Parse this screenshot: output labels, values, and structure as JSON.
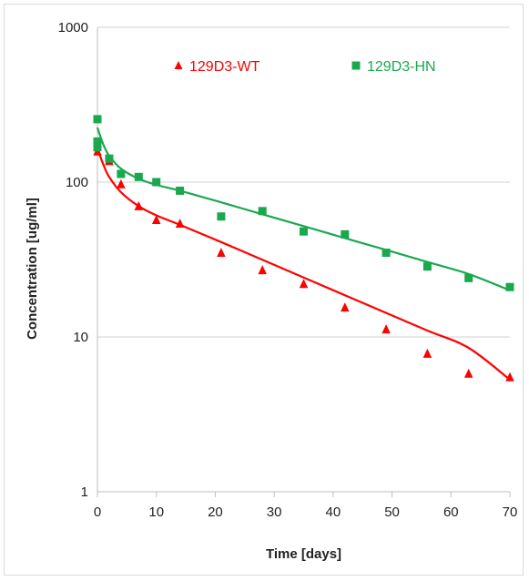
{
  "chart_data": {
    "type": "scatter",
    "title": "",
    "xlabel": "Time [days]",
    "ylabel": "Concentration [ug/ml]",
    "xlim": [
      0,
      70
    ],
    "ylim": [
      1,
      1000
    ],
    "yscale": "log",
    "grid": "horizontal",
    "legend_position": "top",
    "x_ticks": [
      "0",
      "10",
      "20",
      "30",
      "40",
      "50",
      "60",
      "70"
    ],
    "y_ticks": [
      "1",
      "10",
      "100",
      "1000"
    ],
    "series": [
      {
        "name": "129D3-WT",
        "color": "#ff0000",
        "marker": "triangle",
        "points": [
          {
            "x": 0,
            "y": 158
          },
          {
            "x": 2,
            "y": 137
          },
          {
            "x": 4,
            "y": 97
          },
          {
            "x": 7,
            "y": 70
          },
          {
            "x": 10,
            "y": 57
          },
          {
            "x": 14,
            "y": 54
          },
          {
            "x": 21,
            "y": 35
          },
          {
            "x": 28,
            "y": 27
          },
          {
            "x": 35,
            "y": 22
          },
          {
            "x": 42,
            "y": 15.5
          },
          {
            "x": 49,
            "y": 11.2
          },
          {
            "x": 56,
            "y": 7.8
          },
          {
            "x": 63,
            "y": 5.8
          },
          {
            "x": 70,
            "y": 5.5
          }
        ],
        "fit": [
          {
            "x": 0,
            "y": 165
          },
          {
            "x": 1,
            "y": 130
          },
          {
            "x": 2,
            "y": 108
          },
          {
            "x": 4,
            "y": 86
          },
          {
            "x": 7,
            "y": 70
          },
          {
            "x": 10,
            "y": 61
          },
          {
            "x": 14,
            "y": 53
          },
          {
            "x": 21,
            "y": 41
          },
          {
            "x": 28,
            "y": 31.5
          },
          {
            "x": 35,
            "y": 24.2
          },
          {
            "x": 42,
            "y": 18.6
          },
          {
            "x": 49,
            "y": 14.3
          },
          {
            "x": 56,
            "y": 11
          },
          {
            "x": 63,
            "y": 8.5
          },
          {
            "x": 70,
            "y": 5.3
          }
        ]
      },
      {
        "name": "129D3-HN",
        "color": "#1aa84f",
        "marker": "square",
        "points": [
          {
            "x": 0,
            "y": 255
          },
          {
            "x": 0,
            "y": 183
          },
          {
            "x": 0,
            "y": 168
          },
          {
            "x": 2,
            "y": 142
          },
          {
            "x": 4,
            "y": 113
          },
          {
            "x": 7,
            "y": 108
          },
          {
            "x": 10,
            "y": 100
          },
          {
            "x": 14,
            "y": 88
          },
          {
            "x": 21,
            "y": 60
          },
          {
            "x": 28,
            "y": 65
          },
          {
            "x": 35,
            "y": 48
          },
          {
            "x": 42,
            "y": 46
          },
          {
            "x": 49,
            "y": 35
          },
          {
            "x": 56,
            "y": 28.5
          },
          {
            "x": 63,
            "y": 24
          },
          {
            "x": 70,
            "y": 21
          }
        ],
        "fit": [
          {
            "x": 0,
            "y": 225
          },
          {
            "x": 1,
            "y": 175
          },
          {
            "x": 2,
            "y": 148
          },
          {
            "x": 4,
            "y": 122
          },
          {
            "x": 7,
            "y": 105
          },
          {
            "x": 10,
            "y": 96
          },
          {
            "x": 14,
            "y": 88
          },
          {
            "x": 21,
            "y": 74
          },
          {
            "x": 28,
            "y": 62
          },
          {
            "x": 35,
            "y": 52
          },
          {
            "x": 42,
            "y": 43.5
          },
          {
            "x": 49,
            "y": 36.5
          },
          {
            "x": 56,
            "y": 30.5
          },
          {
            "x": 63,
            "y": 25.5
          },
          {
            "x": 70,
            "y": 20
          }
        ]
      }
    ]
  }
}
